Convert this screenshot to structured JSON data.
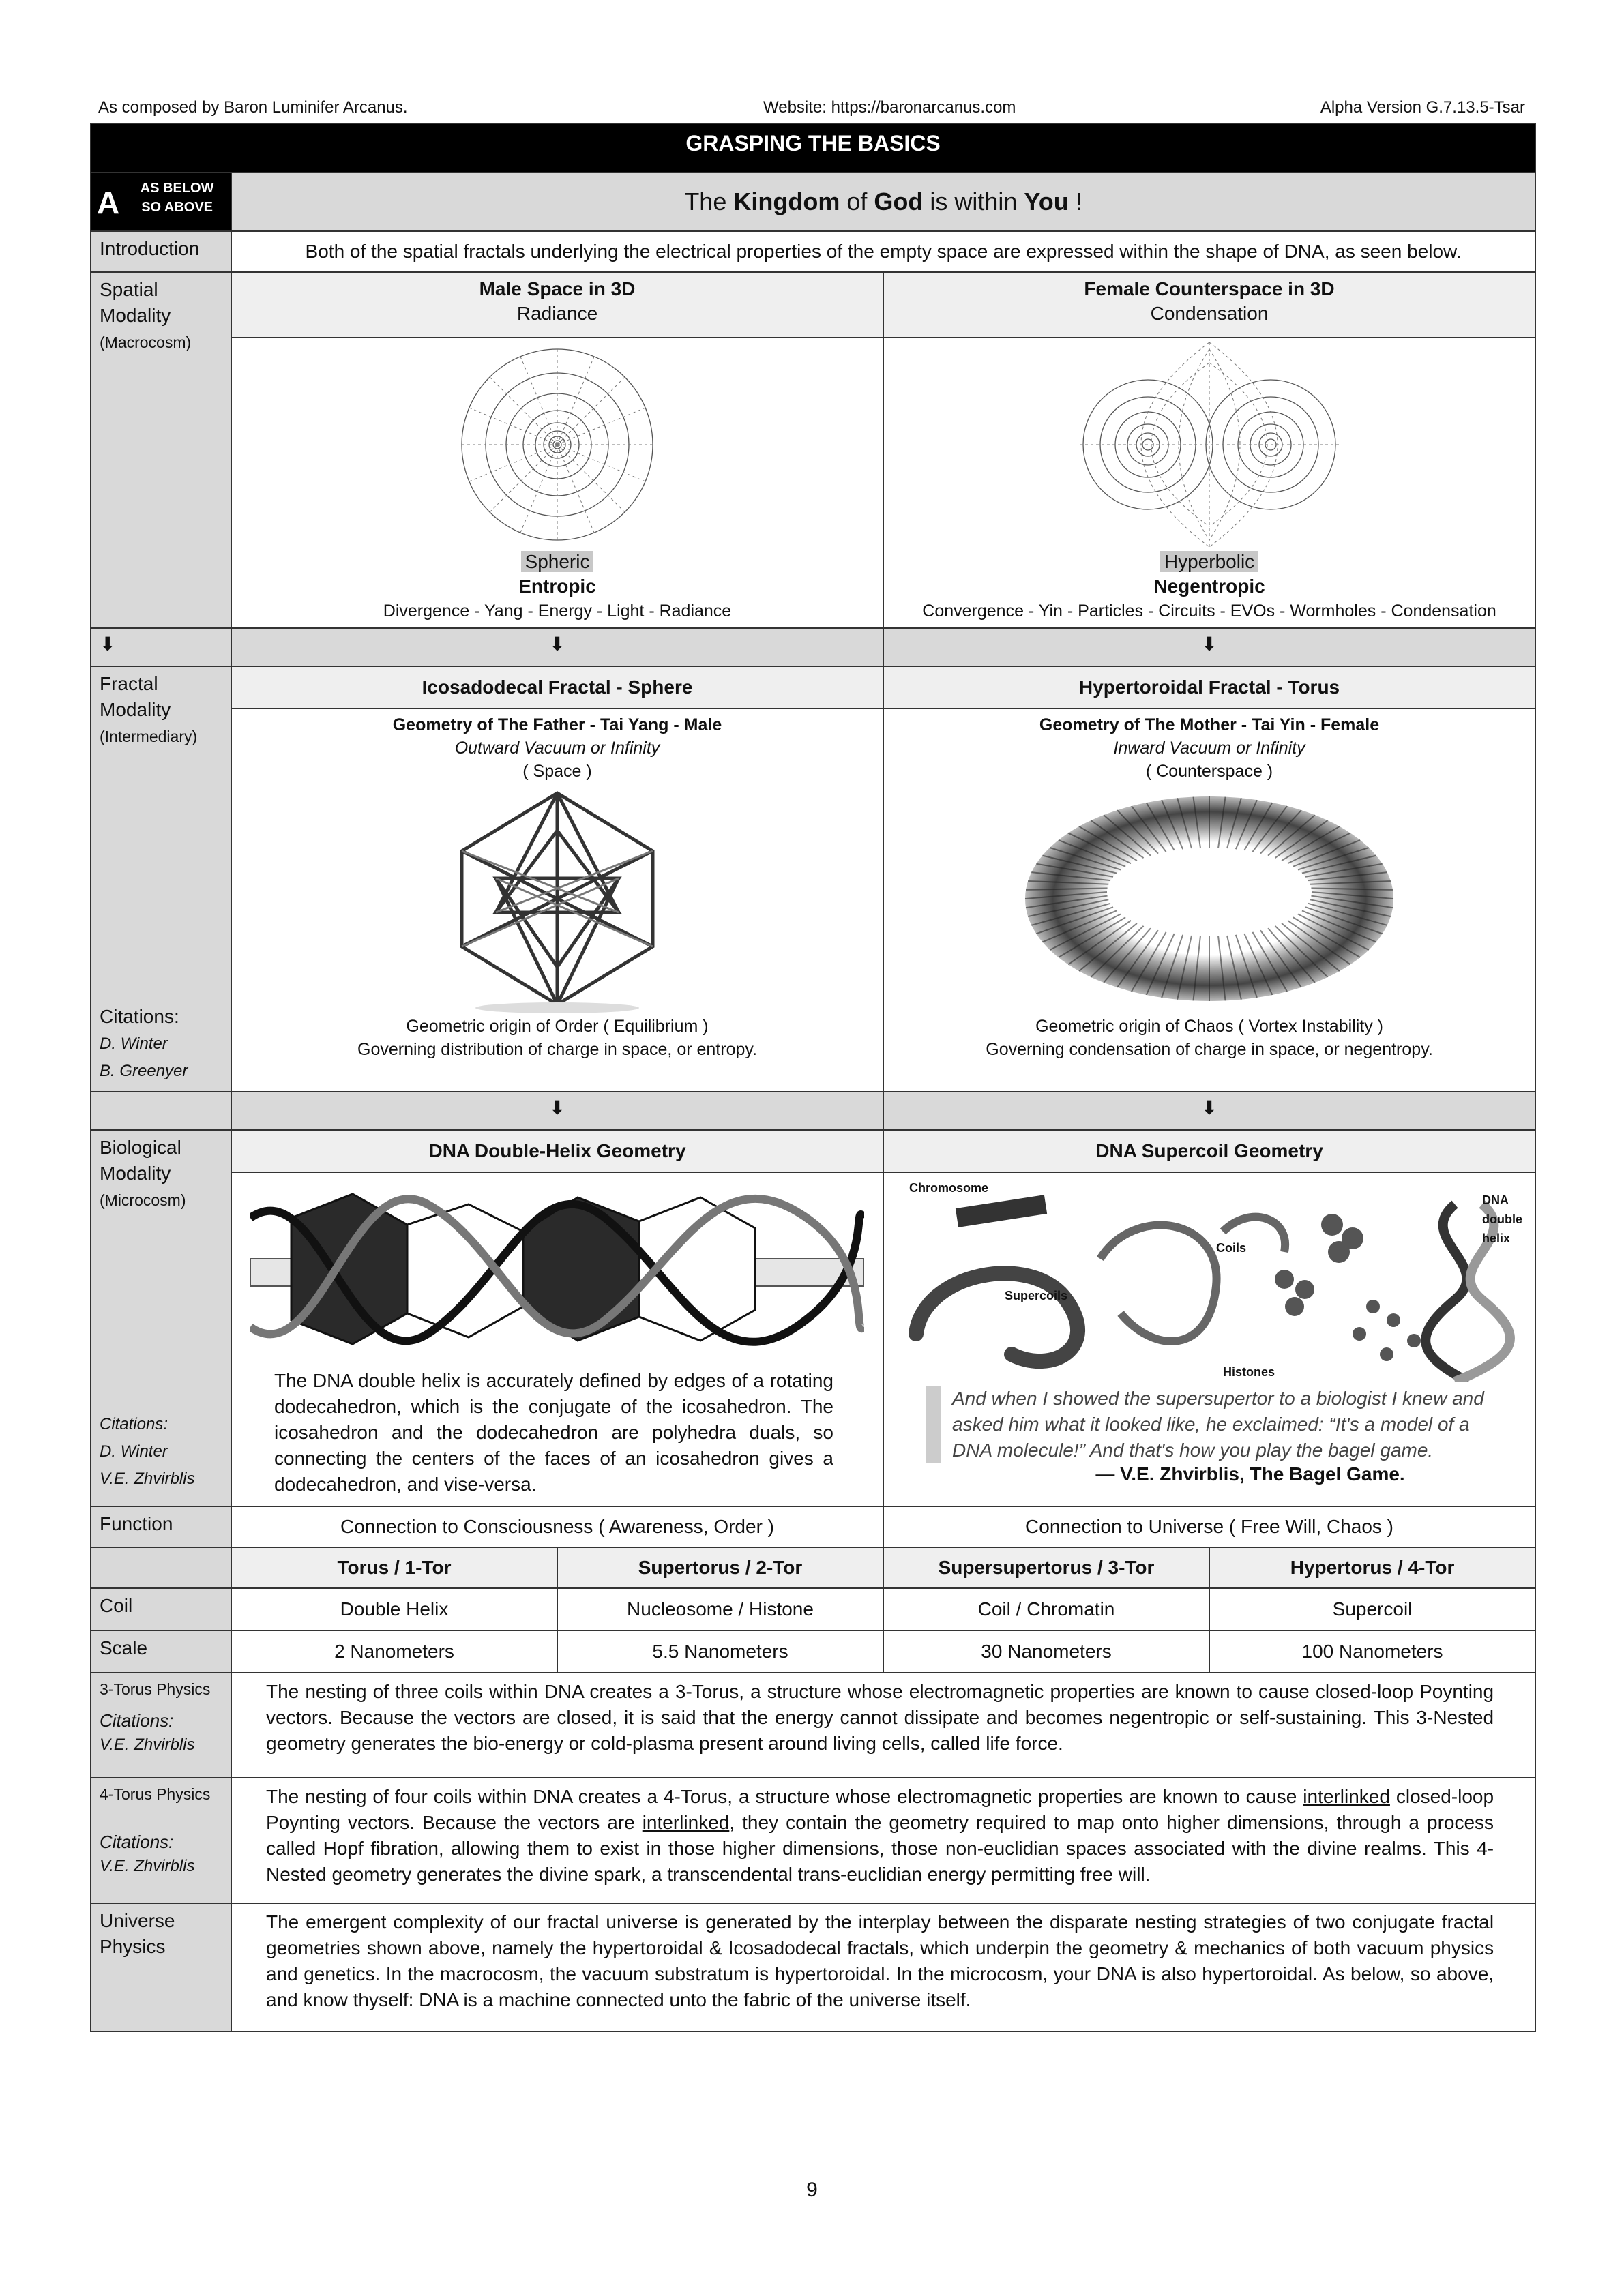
{
  "header": {
    "left": "As composed by Baron Luminifer Arcanus.",
    "center": "Website: https://baronarcanus.com",
    "right": "Alpha Version G.7.13.5-Tsar"
  },
  "title": "GRASPING THE BASICS",
  "section": {
    "letter": "A",
    "line1": "AS BELOW",
    "line2": "SO ABOVE",
    "headline_pre": "The ",
    "headline_b1": "Kingdom",
    "headline_mid1": " of ",
    "headline_b2": "God",
    "headline_mid2": " is within ",
    "headline_b3": "You",
    "headline_post": " !"
  },
  "intro": {
    "label": "Introduction",
    "text": "Both of the spatial fractals underlying the electrical properties of the empty space are expressed within the shape of DNA, as seen below."
  },
  "spatial": {
    "label1": "Spatial",
    "label2": "Modality",
    "label3": "(Macrocosm)",
    "left": {
      "title": "Male Space in 3D",
      "subtitle": "Radiance",
      "tag": "Spheric",
      "name": "Entropic",
      "desc": "Divergence - Yang - Energy - Light - Radiance"
    },
    "right": {
      "title": "Female Counterspace in 3D",
      "subtitle": "Condensation",
      "tag": "Hyperbolic",
      "name": "Negentropic",
      "desc": "Convergence - Yin - Particles - Circuits - EVOs - Wormholes - Condensation"
    }
  },
  "arrow": "⬇",
  "fractal": {
    "label1": "Fractal",
    "label2": "Modality",
    "label3": "(Intermediary)",
    "citations": "Citations:",
    "cite1": "D. Winter",
    "cite2": "B. Greenyer",
    "left": {
      "title": "Icosadodecal Fractal - Sphere",
      "geo": "Geometry of The Father - Tai Yang - Male",
      "vac": "Outward Vacuum or Infinity",
      "space": "( Space )",
      "origin": "Geometric origin of Order ( Equilibrium )",
      "gov": "Governing distribution of charge in space, or entropy."
    },
    "right": {
      "title": "Hypertoroidal Fractal - Torus",
      "geo": "Geometry of The Mother - Tai Yin - Female",
      "vac": "Inward Vacuum or Infinity",
      "space": "( Counterspace )",
      "origin": "Geometric origin of Chaos ( Vortex Instability )",
      "gov": "Governing condensation of charge in space, or negentropy."
    }
  },
  "bio": {
    "label1": "Biological",
    "label2": "Modality",
    "label3": "(Microcosm)",
    "citations": "Citations:",
    "cite1": "D. Winter",
    "cite2": "V.E. Zhvirblis",
    "left": {
      "title": "DNA Double-Helix Geometry",
      "text": "The DNA double helix is accurately defined by edges of a rotating dodecahedron, which is the conjugate of the icosahedron. The icosahedron and the dodecahedron are polyhedra duals, so connecting the centers of the faces of an icosahedron gives a dodecahedron, and vise-versa."
    },
    "right": {
      "title": "DNA Supercoil Geometry",
      "labels": {
        "chromosome": "Chromosome",
        "dna1": "DNA",
        "dna2": "double",
        "dna3": "helix",
        "coils": "Coils",
        "supercoils": "Supercoils",
        "histones": "Histones"
      },
      "quote": "And when I showed the supersupertor to a biologist I knew and asked him what it looked like, he exclaimed: “It's a model of a DNA molecule!” And that's how you play the bagel game.",
      "author": "— V.E. Zhvirblis, The Bagel Game."
    }
  },
  "function": {
    "label": "Function",
    "left": "Connection to Consciousness ( Awareness, Order )",
    "right": "Connection to Universe ( Free Will, Chaos )"
  },
  "tori": {
    "headers": [
      "Torus / 1-Tor",
      "Supertorus / 2-Tor",
      "Supersupertorus / 3-Tor",
      "Hypertorus / 4-Tor"
    ],
    "coil_label": "Coil",
    "coil": [
      "Double Helix",
      "Nucleosome / Histone",
      "Coil / Chromatin",
      "Supercoil"
    ],
    "scale_label": "Scale",
    "scale": [
      "2 Nanometers",
      "5.5 Nanometers",
      "30 Nanometers",
      "100 Nanometers"
    ]
  },
  "torus3": {
    "label": "3-Torus Physics",
    "citations": "Citations:",
    "cite": "V.E. Zhvirblis",
    "text": "The nesting of three coils within DNA creates a 3-Torus, a structure whose electromagnetic properties are known to cause closed-loop Poynting vectors. Because the vectors are closed, it is said that the energy cannot dissipate and becomes negentropic or self-sustaining. This 3-Nested geometry generates the bio-energy or cold-plasma present around living cells, called life force."
  },
  "torus4": {
    "label": "4-Torus Physics",
    "citations": "Citations:",
    "cite": "V.E. Zhvirblis",
    "t1": "The nesting of four coils within DNA creates a 4-Torus, a structure whose electromagnetic properties are known to cause ",
    "u1": "interlinked",
    "t2": " closed-loop Poynting vectors. Because the vectors are ",
    "u2": "interlinked",
    "t3": ", they contain the geometry required to map onto higher dimensions, through a process called Hopf fibration, allowing them to exist in those higher dimensions, those non-euclidian spaces associated with the divine realms. This 4-Nested geometry generates the divine spark, a transcendental trans-euclidian energy permitting free will."
  },
  "universe": {
    "label1": "Universe",
    "label2": "Physics",
    "text": "The emergent complexity of our fractal universe is generated by the interplay between the disparate nesting strategies of two conjugate fractal geometries shown above, namely the hypertoroidal & Icosadodecal fractals, which  underpin the geometry & mechanics of both vacuum physics and genetics. In the macrocosm, the vacuum substratum is hypertoroidal. In the microcosm, your DNA is also hypertoroidal. As below, so above, and know thyself: DNA is a machine connected unto the fabric of the universe itself."
  },
  "page_number": "9"
}
